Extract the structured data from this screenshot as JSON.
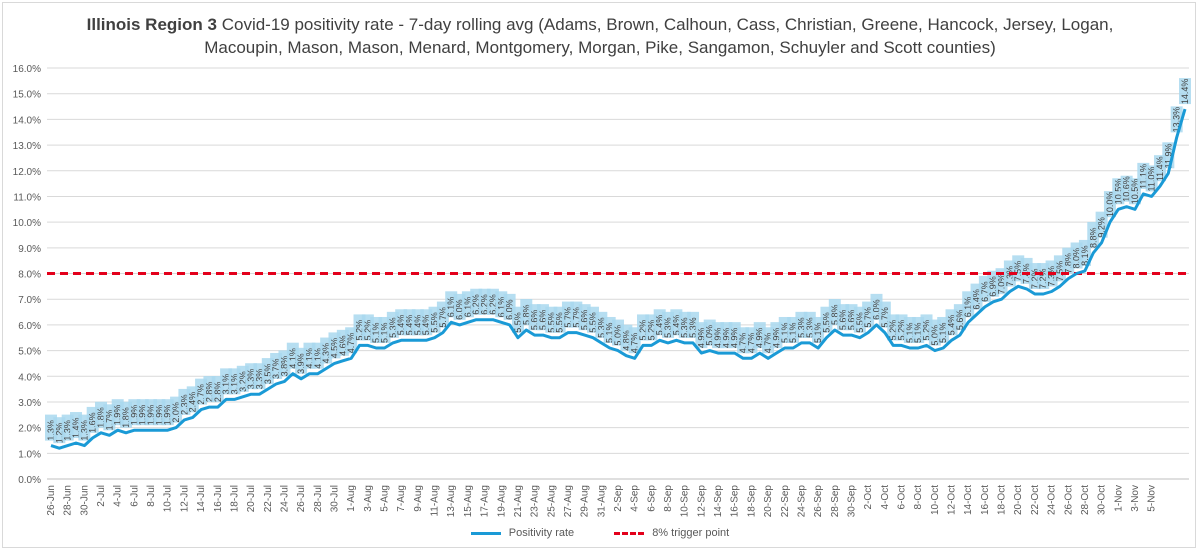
{
  "title": {
    "bold": "Illinois Region 3",
    "line1_rest": " Covid-19 positivity rate - 7-day rolling avg (Adams, Brown, Calhoun, Cass, Christian, Greene, Hancock, Jersey, Logan,",
    "line2": "Macoupin, Mason, Mason, Menard, Montgomery, Morgan, Pike, Sangamon, Schuyler and Scott counties)"
  },
  "legend": {
    "series": "Positivity rate",
    "threshold": "8% trigger point"
  },
  "colors": {
    "line": "#1a9ad6",
    "threshold": "#e3001b",
    "label_bg": "#a9d8ee"
  },
  "chart_data": {
    "type": "line",
    "title": "Illinois Region 3 Covid-19 positivity rate - 7-day rolling avg",
    "xlabel": "",
    "ylabel": "",
    "ylim": [
      0,
      16
    ],
    "yticks": [
      "0.0%",
      "1.0%",
      "2.0%",
      "3.0%",
      "4.0%",
      "5.0%",
      "6.0%",
      "7.0%",
      "8.0%",
      "9.0%",
      "10.0%",
      "11.0%",
      "12.0%",
      "13.0%",
      "14.0%",
      "15.0%",
      "16.0%"
    ],
    "x_tick_labels": [
      "26-Jun",
      "28-Jun",
      "30-Jun",
      "2-Jul",
      "4-Jul",
      "6-Jul",
      "8-Jul",
      "10-Jul",
      "12-Jul",
      "14-Jul",
      "16-Jul",
      "18-Jul",
      "20-Jul",
      "22-Jul",
      "24-Jul",
      "26-Jul",
      "28-Jul",
      "30-Jul",
      "1-Aug",
      "3-Aug",
      "5-Aug",
      "7-Aug",
      "9-Aug",
      "11-Aug",
      "13-Aug",
      "15-Aug",
      "17-Aug",
      "19-Aug",
      "21-Aug",
      "23-Aug",
      "25-Aug",
      "27-Aug",
      "29-Aug",
      "31-Aug",
      "2-Sep",
      "4-Sep",
      "6-Sep",
      "8-Sep",
      "10-Sep",
      "12-Sep",
      "14-Sep",
      "16-Sep",
      "18-Sep",
      "20-Sep",
      "22-Sep",
      "24-Sep",
      "26-Sep",
      "28-Sep",
      "30-Sep",
      "2-Oct",
      "4-Oct",
      "6-Oct",
      "8-Oct",
      "10-Oct",
      "12-Oct",
      "14-Oct",
      "16-Oct",
      "18-Oct",
      "20-Oct",
      "22-Oct",
      "24-Oct",
      "26-Oct",
      "28-Oct",
      "30-Oct",
      "1-Nov",
      "3-Nov",
      "5-Nov"
    ],
    "series": [
      {
        "name": "Positivity rate",
        "start_date": "26-Jun",
        "values": [
          1.3,
          1.2,
          1.3,
          1.4,
          1.3,
          1.6,
          1.8,
          1.7,
          1.9,
          1.8,
          1.9,
          1.9,
          1.9,
          1.9,
          1.9,
          2.0,
          2.3,
          2.4,
          2.7,
          2.8,
          2.8,
          3.1,
          3.1,
          3.2,
          3.3,
          3.3,
          3.5,
          3.7,
          3.8,
          4.1,
          3.9,
          4.1,
          4.1,
          4.3,
          4.5,
          4.6,
          4.7,
          5.2,
          5.2,
          5.1,
          5.1,
          5.3,
          5.4,
          5.4,
          5.4,
          5.4,
          5.5,
          5.7,
          6.1,
          6.0,
          6.1,
          6.2,
          6.2,
          6.2,
          6.1,
          6.0,
          5.5,
          5.8,
          5.6,
          5.6,
          5.5,
          5.5,
          5.7,
          5.7,
          5.6,
          5.5,
          5.3,
          5.1,
          5.0,
          4.8,
          4.7,
          5.2,
          5.2,
          5.4,
          5.3,
          5.4,
          5.3,
          5.3,
          4.9,
          5.0,
          4.9,
          4.9,
          4.9,
          4.7,
          4.7,
          4.9,
          4.7,
          4.9,
          5.1,
          5.1,
          5.3,
          5.3,
          5.1,
          5.5,
          5.8,
          5.6,
          5.6,
          5.5,
          5.7,
          6.0,
          5.7,
          5.2,
          5.2,
          5.1,
          5.1,
          5.2,
          5.0,
          5.1,
          5.4,
          5.6,
          6.1,
          6.4,
          6.7,
          6.9,
          7.0,
          7.3,
          7.5,
          7.4,
          7.2,
          7.2,
          7.3,
          7.5,
          7.8,
          8.0,
          8.1,
          8.8,
          9.2,
          10.0,
          10.5,
          10.6,
          10.5,
          11.1,
          11.0,
          11.4,
          11.9,
          13.3,
          14.4
        ]
      },
      {
        "name": "8% trigger point",
        "constant": 8.0
      }
    ]
  }
}
